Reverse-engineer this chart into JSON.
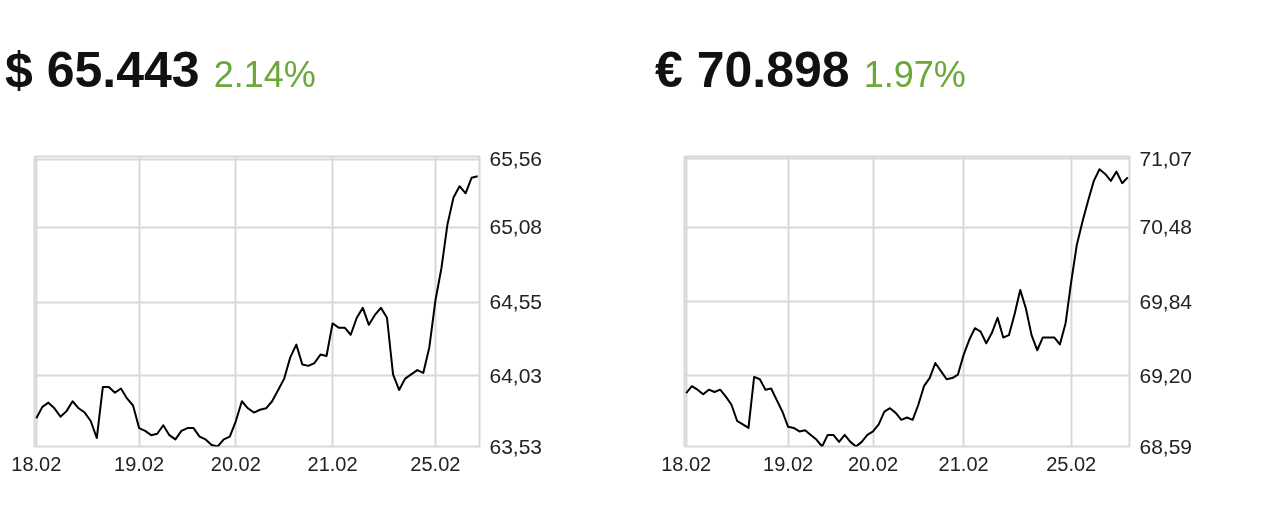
{
  "chart_data": [
    {
      "type": "line",
      "title": "$ 65.443",
      "subtitle": "2.14%",
      "grid": true,
      "marker": "none",
      "line_style": "solid",
      "categories": [
        "18.02",
        null,
        null,
        null,
        null,
        null,
        null,
        null,
        null,
        null,
        null,
        null,
        null,
        null,
        null,
        null,
        null,
        "19.02",
        null,
        null,
        null,
        null,
        null,
        null,
        null,
        null,
        null,
        null,
        null,
        null,
        null,
        null,
        null,
        "20.02",
        null,
        null,
        null,
        null,
        null,
        null,
        null,
        null,
        null,
        null,
        null,
        null,
        null,
        null,
        null,
        "21.02",
        null,
        null,
        null,
        null,
        null,
        null,
        null,
        null,
        null,
        null,
        null,
        null,
        null,
        null,
        null,
        null,
        "25.02",
        null,
        null,
        null,
        null,
        null,
        null,
        null
      ],
      "ylim": [
        63.53,
        65.58
      ],
      "yticks": [
        {
          "value": 63.53,
          "label": "63,53"
        },
        {
          "value": 64.03,
          "label": "64,03"
        },
        {
          "value": 64.55,
          "label": "64,55"
        },
        {
          "value": 65.08,
          "label": "65,08"
        },
        {
          "value": 65.56,
          "label": "65,56"
        }
      ],
      "series": [
        {
          "color": "#000000",
          "values": [
            63.73,
            63.81,
            63.84,
            63.8,
            63.74,
            63.78,
            63.85,
            63.8,
            63.77,
            63.71,
            63.59,
            63.95,
            63.95,
            63.91,
            63.94,
            63.87,
            63.82,
            63.66,
            63.64,
            63.61,
            63.62,
            63.68,
            63.61,
            63.58,
            63.64,
            63.66,
            63.66,
            63.6,
            63.58,
            63.54,
            63.53,
            63.58,
            63.6,
            63.71,
            63.85,
            63.8,
            63.77,
            63.79,
            63.8,
            63.85,
            63.93,
            64.01,
            64.16,
            64.25,
            64.11,
            64.1,
            64.12,
            64.18,
            64.17,
            64.4,
            64.37,
            64.37,
            64.32,
            64.44,
            64.51,
            64.39,
            64.46,
            64.51,
            64.44,
            64.04,
            63.93,
            64.01,
            64.04,
            64.07,
            64.05,
            64.23,
            64.56,
            64.79,
            65.1,
            65.29,
            65.37,
            65.32,
            65.43,
            65.44
          ]
        }
      ]
    },
    {
      "type": "line",
      "title": "€ 70.898",
      "subtitle": "1.97%",
      "grid": true,
      "marker": "none",
      "line_style": "solid",
      "categories": [
        "18.02",
        null,
        null,
        null,
        null,
        null,
        null,
        null,
        null,
        null,
        null,
        null,
        null,
        null,
        null,
        null,
        null,
        null,
        "19.02",
        null,
        null,
        null,
        null,
        null,
        null,
        null,
        null,
        null,
        null,
        null,
        null,
        null,
        null,
        "20.02",
        null,
        null,
        null,
        null,
        null,
        null,
        null,
        null,
        null,
        null,
        null,
        null,
        null,
        null,
        null,
        "21.02",
        null,
        null,
        null,
        null,
        null,
        null,
        null,
        null,
        null,
        null,
        null,
        null,
        null,
        null,
        null,
        null,
        null,
        null,
        "25.02",
        null,
        null,
        null,
        null,
        null,
        null,
        null,
        null,
        null,
        null
      ],
      "ylim": [
        68.59,
        71.09
      ],
      "yticks": [
        {
          "value": 68.59,
          "label": "68,59"
        },
        {
          "value": 69.2,
          "label": "69,20"
        },
        {
          "value": 69.84,
          "label": "69,84"
        },
        {
          "value": 70.48,
          "label": "70,48"
        },
        {
          "value": 71.07,
          "label": "71,07"
        }
      ],
      "series": [
        {
          "color": "#000000",
          "values": [
            69.05,
            69.11,
            69.08,
            69.04,
            69.08,
            69.06,
            69.08,
            69.02,
            68.95,
            68.81,
            68.78,
            68.75,
            69.19,
            69.17,
            69.08,
            69.09,
            68.99,
            68.89,
            68.76,
            68.75,
            68.72,
            68.73,
            68.69,
            68.65,
            68.59,
            68.69,
            68.69,
            68.63,
            68.69,
            68.63,
            68.59,
            68.63,
            68.69,
            68.72,
            68.78,
            68.89,
            68.92,
            68.88,
            68.82,
            68.84,
            68.82,
            68.95,
            69.11,
            69.18,
            69.31,
            69.24,
            69.17,
            69.18,
            69.21,
            69.38,
            69.51,
            69.61,
            69.58,
            69.48,
            69.57,
            69.7,
            69.53,
            69.55,
            69.73,
            69.94,
            69.78,
            69.55,
            69.42,
            69.53,
            69.53,
            69.53,
            69.47,
            69.65,
            70.01,
            70.33,
            70.53,
            70.71,
            70.88,
            70.98,
            70.94,
            70.88,
            70.96,
            70.86,
            70.91
          ]
        }
      ]
    }
  ]
}
